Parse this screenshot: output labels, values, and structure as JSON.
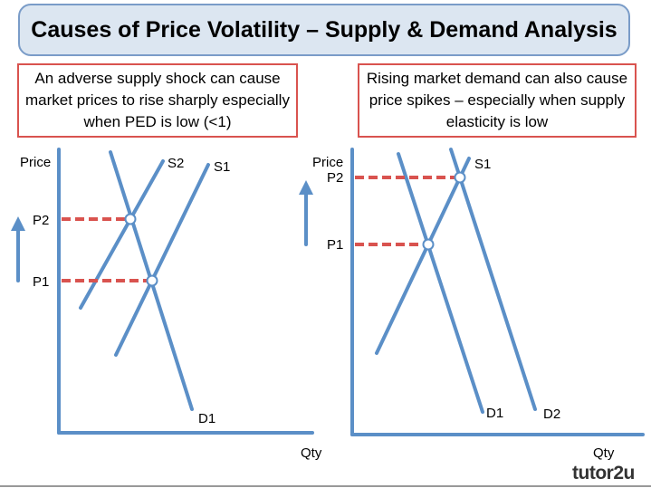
{
  "title": "Causes of Price Volatility – Supply & Demand Analysis",
  "notes": {
    "left": "An adverse supply shock can cause market prices to rise sharply especially when PED is low (<1)",
    "right": "Rising market demand can also cause price spikes – especially when supply elasticity is low"
  },
  "left_diagram": {
    "y_label": "Price",
    "x_label": "Qty",
    "p2": "P2",
    "p1": "P1",
    "s2": "S2",
    "s1": "S1",
    "d1": "D1"
  },
  "right_diagram": {
    "y_label": "Price",
    "x_label": "Qty",
    "p2": "P2",
    "p1": "P1",
    "s1": "S1",
    "d1": "D1",
    "d2": "D2"
  },
  "logo": "tutor2u",
  "colors": {
    "curve": "#5b8fc7",
    "dashed": "#d9534f",
    "title_bg": "#dce6f1",
    "note_border": "#d9534f"
  }
}
